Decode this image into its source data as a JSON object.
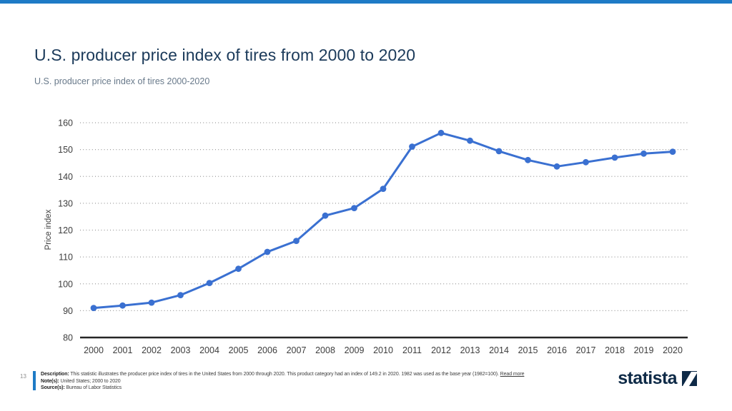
{
  "page": {
    "title": "U.S. producer price index of tires from 2000 to 2020",
    "subtitle": "U.S. producer price index of tires 2000-2020",
    "page_number": "13",
    "accent_color": "#1e7bc6"
  },
  "chart_data": {
    "type": "line",
    "title": "U.S. producer price index of tires from 2000 to 2020",
    "xlabel": "",
    "ylabel": "Price index",
    "categories": [
      "2000",
      "2001",
      "2002",
      "2003",
      "2004",
      "2005",
      "2006",
      "2007",
      "2008",
      "2009",
      "2010",
      "2011",
      "2012",
      "2013",
      "2014",
      "2015",
      "2016",
      "2017",
      "2018",
      "2019",
      "2020"
    ],
    "values": [
      91,
      91.9,
      93,
      95.8,
      100.3,
      105.6,
      111.9,
      116,
      125.4,
      128.2,
      135.4,
      151.1,
      156.2,
      153.3,
      149.4,
      146.1,
      143.7,
      145.3,
      147,
      148.5,
      149.2
    ],
    "ylim": [
      80,
      160
    ],
    "ytick_step": 10,
    "grid": "horizontal-dotted",
    "legend": "none",
    "line_color": "#3a70d1",
    "marker": "circle"
  },
  "footer": {
    "description_label": "Description:",
    "description_text": " This statistic illustrates the producer price index of tires in the United States from 2000 through 2020. This product category had an index of 149.2 in 2020. 1982 was used as the base year (1982=100). ",
    "read_more_label": "Read more",
    "notes_label": "Note(s):",
    "notes_text": " United States; 2000 to 2020",
    "source_label": "Source(s):",
    "source_text": " Bureau of Labor Statistics"
  },
  "branding": {
    "logo_text": "statista",
    "logo_color": "#0e2a47"
  }
}
